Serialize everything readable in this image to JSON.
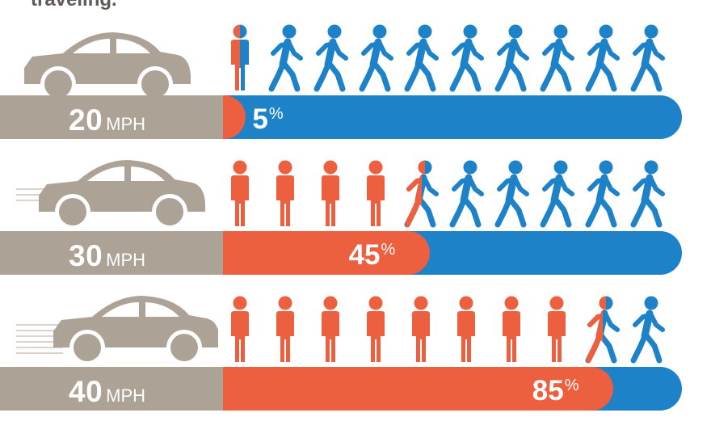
{
  "header": {
    "intro_text": "traveling."
  },
  "colors": {
    "fatal": "#ec5f3f",
    "survived": "#1d82c8",
    "car": "#ada296",
    "speed_box": "#ada296"
  },
  "icons": {
    "car": "car-icon",
    "person_standing": "person-standing-icon",
    "person_walking": "person-walking-icon"
  },
  "chart_data": {
    "type": "bar",
    "categories": [
      "20 MPH",
      "30 MPH",
      "40 MPH"
    ],
    "values": [
      5,
      45,
      85
    ],
    "ylim": [
      0,
      100
    ],
    "title": "",
    "xlabel": "",
    "ylabel": "",
    "rows": [
      {
        "speed_number": "20",
        "speed_unit": "MPH",
        "percent_number": "5",
        "percent_sign": "%",
        "percent": 5,
        "fatal_people": 0.5,
        "total_people": 10,
        "motion": 0
      },
      {
        "speed_number": "30",
        "speed_unit": "MPH",
        "percent_number": "45",
        "percent_sign": "%",
        "percent": 45,
        "fatal_people": 4.5,
        "total_people": 10,
        "motion": 1
      },
      {
        "speed_number": "40",
        "speed_unit": "MPH",
        "percent_number": "85",
        "percent_sign": "%",
        "percent": 85,
        "fatal_people": 8.5,
        "total_people": 10,
        "motion": 2
      }
    ]
  }
}
